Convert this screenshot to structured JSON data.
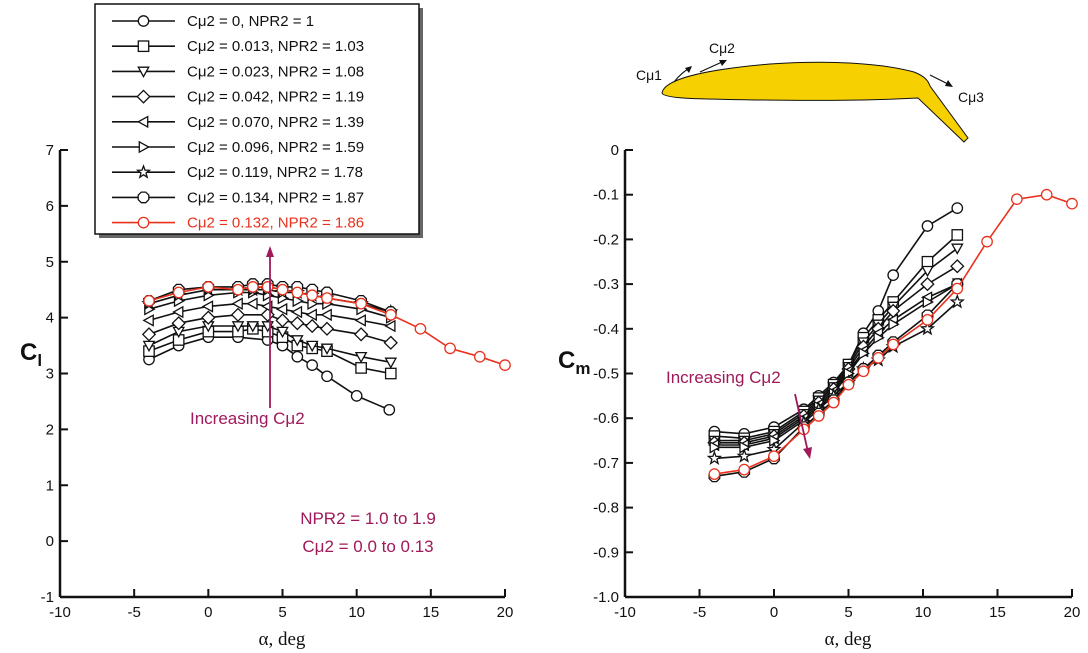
{
  "colors": {
    "black": "#111111",
    "red": "#e8321e",
    "magenta": "#a0195a",
    "airfoil": "#f6d000"
  },
  "legend": {
    "entries": [
      {
        "label": "Cμ2 = 0, NPR2 = 1",
        "marker": "circle",
        "color": "#111111"
      },
      {
        "label": "Cμ2 = 0.013, NPR2 = 1.03",
        "marker": "square",
        "color": "#111111"
      },
      {
        "label": "Cμ2 = 0.023, NPR2 = 1.08",
        "marker": "triangle-down",
        "color": "#111111"
      },
      {
        "label": "Cμ2 = 0.042, NPR2 = 1.19",
        "marker": "diamond",
        "color": "#111111"
      },
      {
        "label": "Cμ2 = 0.070, NPR2 = 1.39",
        "marker": "triangle-left",
        "color": "#111111"
      },
      {
        "label": "Cμ2 = 0.096, NPR2 = 1.59",
        "marker": "triangle-right",
        "color": "#111111"
      },
      {
        "label": "Cμ2 = 0.119, NPR2 = 1.78",
        "marker": "star",
        "color": "#111111"
      },
      {
        "label": "Cμ2 = 0.134, NPR2 = 1.87",
        "marker": "octagon",
        "color": "#111111"
      },
      {
        "label": "Cμ2 = 0.132, NPR2 = 1.86",
        "marker": "circle",
        "color": "#e8321e"
      }
    ]
  },
  "airfoil_labels": {
    "cmu1": "Cμ1",
    "cmu2": "Cμ2",
    "cmu3": "Cμ3"
  },
  "chart_data": [
    {
      "type": "line",
      "xlabel": "α, deg",
      "ylabel_main": "C",
      "ylabel_sub": "l",
      "xlim": [
        -10,
        20
      ],
      "ylim": [
        -1,
        7
      ],
      "xticks": [
        -10,
        -5,
        0,
        5,
        10,
        15,
        20
      ],
      "yticks": [
        -1,
        0,
        1,
        2,
        3,
        4,
        5,
        6,
        7
      ],
      "annotations": {
        "increasing": "Increasing Cμ2",
        "range_line1": "NPR2 = 1.0 to 1.9",
        "range_line2": "Cμ2 = 0.0 to 0.13"
      },
      "series": [
        {
          "name": "Cμ2 = 0, NPR2 = 1",
          "marker": "circle",
          "color": "#111111",
          "x": [
            -4,
            -2,
            0,
            2,
            4,
            5,
            6,
            7,
            8,
            10,
            12.2
          ],
          "y": [
            3.25,
            3.5,
            3.65,
            3.65,
            3.6,
            3.5,
            3.3,
            3.15,
            2.95,
            2.6,
            2.35
          ]
        },
        {
          "name": "Cμ2 = 0.013, NPR2 = 1.03",
          "marker": "square",
          "color": "#111111",
          "x": [
            -4,
            -2,
            0,
            2,
            3,
            4,
            5,
            6,
            7,
            8,
            10.3,
            12.3
          ],
          "y": [
            3.4,
            3.6,
            3.75,
            3.75,
            3.8,
            3.75,
            3.65,
            3.5,
            3.45,
            3.4,
            3.1,
            3.0
          ]
        },
        {
          "name": "Cμ2 = 0.023, NPR2 = 1.08",
          "marker": "triangle-down",
          "color": "#111111",
          "x": [
            -4,
            -2,
            0,
            2,
            3,
            4,
            5,
            6,
            7,
            8,
            10.3,
            12.3
          ],
          "y": [
            3.5,
            3.75,
            3.85,
            3.85,
            3.85,
            3.85,
            3.75,
            3.6,
            3.5,
            3.45,
            3.3,
            3.2
          ]
        },
        {
          "name": "Cμ2 = 0.042, NPR2 = 1.19",
          "marker": "diamond",
          "color": "#111111",
          "x": [
            -4,
            -2,
            0,
            2,
            4,
            5,
            6,
            7,
            8,
            10.3,
            12.3
          ],
          "y": [
            3.7,
            3.9,
            4.0,
            4.05,
            4.05,
            3.95,
            3.9,
            3.85,
            3.8,
            3.7,
            3.55
          ]
        },
        {
          "name": "Cμ2 = 0.070, NPR2 = 1.39",
          "marker": "triangle-left",
          "color": "#111111",
          "x": [
            -4,
            -2,
            0,
            2,
            3,
            4,
            5,
            6,
            7,
            8,
            10.3,
            12.3
          ],
          "y": [
            3.95,
            4.1,
            4.2,
            4.25,
            4.25,
            4.2,
            4.15,
            4.1,
            4.05,
            4.05,
            3.95,
            3.85
          ]
        },
        {
          "name": "Cμ2 = 0.096, NPR2 = 1.59",
          "marker": "triangle-right",
          "color": "#111111",
          "x": [
            -4,
            -2,
            0,
            2,
            3,
            4,
            5,
            6,
            7,
            8,
            10.3,
            12.3
          ],
          "y": [
            4.15,
            4.3,
            4.4,
            4.45,
            4.45,
            4.4,
            4.35,
            4.3,
            4.25,
            4.25,
            4.15,
            4.0
          ]
        },
        {
          "name": "Cμ2 = 0.119, NPR2 = 1.78",
          "marker": "star",
          "color": "#111111",
          "x": [
            -4,
            -2,
            0,
            2,
            3,
            4,
            5,
            6,
            7,
            8,
            10.3,
            12.3
          ],
          "y": [
            4.25,
            4.4,
            4.5,
            4.5,
            4.5,
            4.5,
            4.45,
            4.45,
            4.4,
            4.35,
            4.25,
            4.1
          ]
        },
        {
          "name": "Cμ2 = 0.134, NPR2 = 1.87",
          "marker": "octagon",
          "color": "#111111",
          "x": [
            -4,
            -2,
            0,
            2,
            3,
            4,
            5,
            6,
            7,
            8,
            10.3,
            12.3
          ],
          "y": [
            4.3,
            4.5,
            4.55,
            4.55,
            4.6,
            4.6,
            4.55,
            4.55,
            4.5,
            4.45,
            4.3,
            4.1
          ]
        },
        {
          "name": "Cμ2 = 0.132, NPR2 = 1.86",
          "marker": "circle",
          "color": "#e8321e",
          "x": [
            -4,
            -2,
            0,
            2,
            3,
            4,
            5,
            6,
            7,
            8,
            10.3,
            12.3,
            14.3,
            16.3,
            18.3,
            20
          ],
          "y": [
            4.3,
            4.45,
            4.55,
            4.5,
            4.55,
            4.55,
            4.5,
            4.45,
            4.4,
            4.35,
            4.25,
            4.05,
            3.8,
            3.45,
            3.3,
            3.15
          ]
        }
      ]
    },
    {
      "type": "line",
      "xlabel": "α, deg",
      "ylabel_main": "C",
      "ylabel_sub": "m",
      "xlim": [
        -10,
        20
      ],
      "ylim": [
        -1.0,
        0
      ],
      "xticks": [
        -10,
        -5,
        0,
        5,
        10,
        15,
        20
      ],
      "yticks": [
        -1.0,
        -0.9,
        -0.8,
        -0.7,
        -0.6,
        -0.5,
        -0.4,
        -0.3,
        -0.2,
        -0.1,
        0
      ],
      "annotations": {
        "increasing": "Increasing Cμ2"
      },
      "series": [
        {
          "name": "Cμ2 = 0, NPR2 = 1",
          "marker": "circle",
          "color": "#111111",
          "x": [
            -4,
            -2,
            0,
            2,
            3,
            4,
            5,
            6,
            7,
            8,
            10.3,
            12.3
          ],
          "y": [
            -0.63,
            -0.635,
            -0.62,
            -0.58,
            -0.55,
            -0.52,
            -0.48,
            -0.41,
            -0.36,
            -0.28,
            -0.17,
            -0.13
          ]
        },
        {
          "name": "Cμ2 = 0.013, NPR2 = 1.03",
          "marker": "square",
          "color": "#111111",
          "x": [
            -4,
            -2,
            0,
            2,
            3,
            4,
            5,
            6,
            7,
            8,
            10.3,
            12.3
          ],
          "y": [
            -0.64,
            -0.645,
            -0.63,
            -0.585,
            -0.555,
            -0.525,
            -0.48,
            -0.42,
            -0.38,
            -0.34,
            -0.25,
            -0.19
          ]
        },
        {
          "name": "Cμ2 = 0.023, NPR2 = 1.08",
          "marker": "triangle-down",
          "color": "#111111",
          "x": [
            -4,
            -2,
            0,
            2,
            3,
            4,
            5,
            6,
            7,
            8,
            10.3,
            12.3
          ],
          "y": [
            -0.65,
            -0.65,
            -0.635,
            -0.59,
            -0.56,
            -0.53,
            -0.485,
            -0.43,
            -0.39,
            -0.35,
            -0.27,
            -0.22
          ]
        },
        {
          "name": "Cμ2 = 0.042, NPR2 = 1.19",
          "marker": "diamond",
          "color": "#111111",
          "x": [
            -4,
            -2,
            0,
            2,
            3,
            4,
            5,
            6,
            7,
            8,
            10.3,
            12.3
          ],
          "y": [
            -0.655,
            -0.655,
            -0.64,
            -0.595,
            -0.565,
            -0.535,
            -0.49,
            -0.44,
            -0.4,
            -0.36,
            -0.3,
            -0.26
          ]
        },
        {
          "name": "Cμ2 = 0.070, NPR2 = 1.39",
          "marker": "triangle-left",
          "color": "#111111",
          "x": [
            -4,
            -2,
            0,
            2,
            3,
            4,
            5,
            6,
            7,
            8,
            10.3,
            12.3
          ],
          "y": [
            -0.66,
            -0.66,
            -0.645,
            -0.6,
            -0.57,
            -0.54,
            -0.495,
            -0.45,
            -0.41,
            -0.38,
            -0.33,
            -0.3
          ]
        },
        {
          "name": "Cμ2 = 0.096, NPR2 = 1.59",
          "marker": "triangle-right",
          "color": "#111111",
          "x": [
            -4,
            -2,
            0,
            2,
            3,
            4,
            5,
            6,
            7,
            8,
            10.3,
            12.3
          ],
          "y": [
            -0.665,
            -0.665,
            -0.65,
            -0.605,
            -0.575,
            -0.545,
            -0.5,
            -0.455,
            -0.42,
            -0.39,
            -0.34,
            -0.3
          ]
        },
        {
          "name": "Cμ2 = 0.119, NPR2 = 1.78",
          "marker": "star",
          "color": "#111111",
          "x": [
            -4,
            -2,
            0,
            2,
            3,
            4,
            5,
            6,
            7,
            8,
            10.3,
            12.3
          ],
          "y": [
            -0.69,
            -0.685,
            -0.67,
            -0.61,
            -0.58,
            -0.55,
            -0.52,
            -0.49,
            -0.47,
            -0.44,
            -0.4,
            -0.34
          ]
        },
        {
          "name": "Cμ2 = 0.134, NPR2 = 1.87",
          "marker": "octagon",
          "color": "#111111",
          "x": [
            -4,
            -2,
            0,
            2,
            3,
            4,
            5,
            6,
            7,
            8,
            10.3,
            12.3
          ],
          "y": [
            -0.73,
            -0.72,
            -0.69,
            -0.62,
            -0.59,
            -0.56,
            -0.52,
            -0.49,
            -0.46,
            -0.43,
            -0.37,
            -0.3
          ]
        },
        {
          "name": "Cμ2 = 0.132, NPR2 = 1.86",
          "marker": "circle",
          "color": "#e8321e",
          "x": [
            -4,
            -2,
            0,
            2,
            3,
            4,
            5,
            6,
            7,
            8,
            10.3,
            12.3,
            14.3,
            16.3,
            18.3,
            20
          ],
          "y": [
            -0.725,
            -0.715,
            -0.685,
            -0.625,
            -0.595,
            -0.565,
            -0.525,
            -0.495,
            -0.465,
            -0.435,
            -0.38,
            -0.31,
            -0.205,
            -0.11,
            -0.1,
            -0.12
          ]
        }
      ]
    }
  ]
}
